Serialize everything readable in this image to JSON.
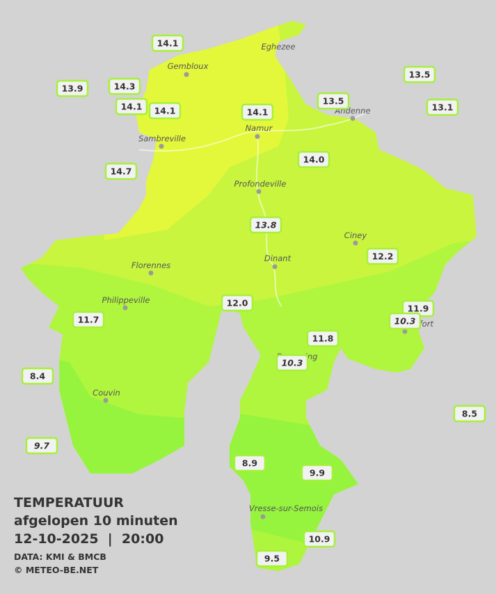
{
  "title": {
    "heading": "TEMPERATUUR",
    "period": "afgelopen 10 minuten",
    "datetime": "12-10-2025  |  20:00",
    "source": "DATA: KMI & BMCB",
    "credit": "© METEO-BE.NET"
  },
  "towns": [
    "Eghezee",
    "Gembloux",
    "Andenne",
    "Namur",
    "Sambreville",
    "Profondeville",
    "Ciney",
    "Florennes",
    "Dinant",
    "Philippeville",
    "Couvin",
    "Vresse-sur-Semois",
    "Beauraing",
    "Rochefort"
  ],
  "stations": [
    {
      "value": "14.1"
    },
    {
      "value": "13.9"
    },
    {
      "value": "14.3"
    },
    {
      "value": "14.1"
    },
    {
      "value": "14.1"
    },
    {
      "value": "14.1"
    },
    {
      "value": "13.5"
    },
    {
      "value": "13.5"
    },
    {
      "value": "13.1"
    },
    {
      "value": "14.7"
    },
    {
      "value": "14.0"
    },
    {
      "value": "13.8",
      "italic": true
    },
    {
      "value": "12.2"
    },
    {
      "value": "12.0"
    },
    {
      "value": "11.7"
    },
    {
      "value": "11.9"
    },
    {
      "value": "10.3",
      "italic": true
    },
    {
      "value": "11.8"
    },
    {
      "value": "10.3",
      "italic": true
    },
    {
      "value": "8.4"
    },
    {
      "value": "8.5"
    },
    {
      "value": "9.7",
      "italic": true
    },
    {
      "value": "8.9"
    },
    {
      "value": "9.9"
    },
    {
      "value": "10.9"
    },
    {
      "value": "9.5"
    }
  ]
}
